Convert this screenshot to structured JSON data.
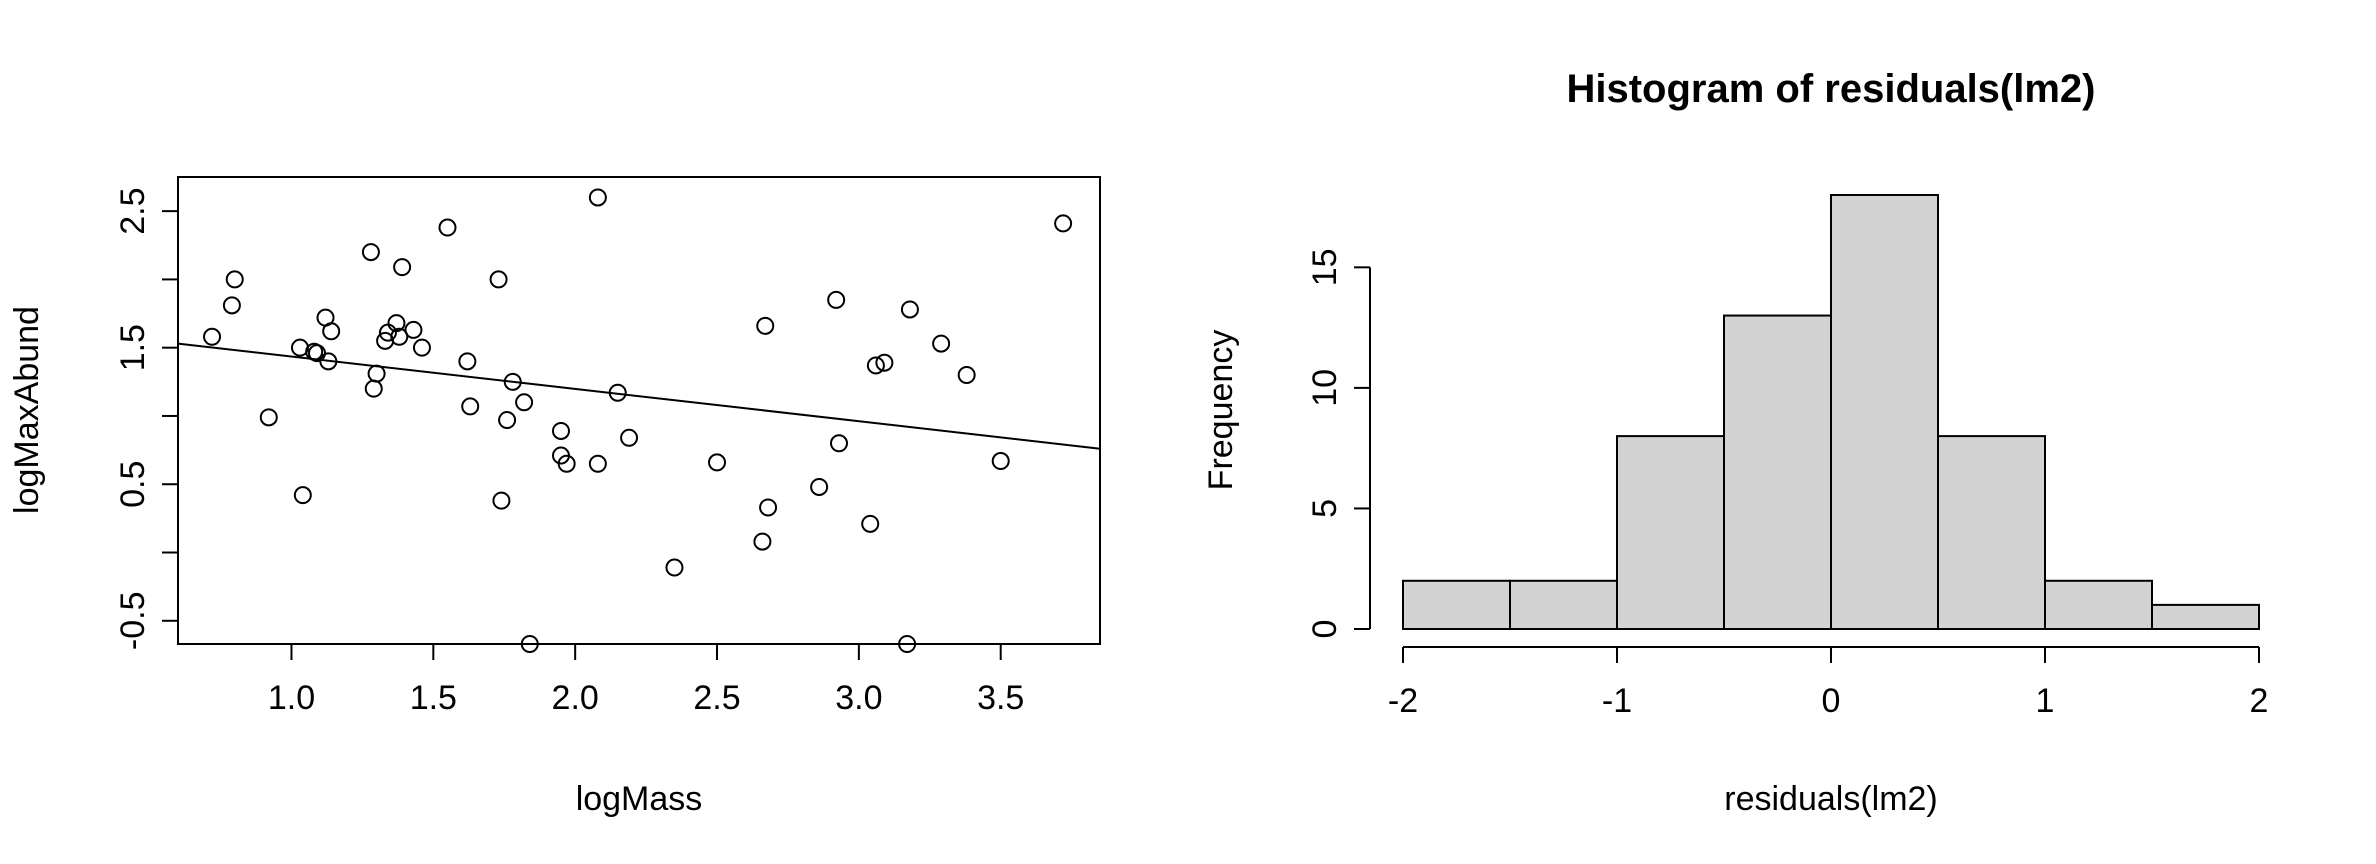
{
  "chart_data": [
    {
      "type": "scatter",
      "title": "",
      "xlabel": "logMass",
      "ylabel": "logMaxAbund",
      "xlim": [
        0.6,
        3.85
      ],
      "ylim": [
        -0.67,
        2.75
      ],
      "xticks": [
        1.0,
        1.5,
        2.0,
        2.5,
        3.0,
        3.5
      ],
      "xtick_labels": [
        "1.0",
        "1.5",
        "2.0",
        "2.5",
        "3.0",
        "3.5"
      ],
      "yticks": [
        -0.5,
        0.0,
        0.5,
        1.0,
        1.5,
        2.0,
        2.5
      ],
      "ytick_labels": [
        "-0.5",
        "",
        "0.5",
        "",
        "1.5",
        "",
        "2.5"
      ],
      "regression_line": {
        "x": [
          0.6,
          3.85
        ],
        "y": [
          1.53,
          0.76
        ]
      },
      "points": [
        {
          "x": 0.72,
          "y": 1.58
        },
        {
          "x": 0.79,
          "y": 1.81
        },
        {
          "x": 0.8,
          "y": 2.0
        },
        {
          "x": 0.92,
          "y": 0.99
        },
        {
          "x": 1.03,
          "y": 1.5
        },
        {
          "x": 1.04,
          "y": 0.42
        },
        {
          "x": 1.08,
          "y": 1.47
        },
        {
          "x": 1.09,
          "y": 1.46
        },
        {
          "x": 1.12,
          "y": 1.72
        },
        {
          "x": 1.13,
          "y": 1.4
        },
        {
          "x": 1.14,
          "y": 1.62
        },
        {
          "x": 1.28,
          "y": 2.2
        },
        {
          "x": 1.29,
          "y": 1.2
        },
        {
          "x": 1.3,
          "y": 1.31
        },
        {
          "x": 1.33,
          "y": 1.55
        },
        {
          "x": 1.34,
          "y": 1.61
        },
        {
          "x": 1.37,
          "y": 1.68
        },
        {
          "x": 1.38,
          "y": 1.58
        },
        {
          "x": 1.39,
          "y": 2.09
        },
        {
          "x": 1.43,
          "y": 1.63
        },
        {
          "x": 1.46,
          "y": 1.5
        },
        {
          "x": 1.55,
          "y": 2.38
        },
        {
          "x": 1.62,
          "y": 1.4
        },
        {
          "x": 1.63,
          "y": 1.07
        },
        {
          "x": 1.73,
          "y": 2.0
        },
        {
          "x": 1.74,
          "y": 0.38
        },
        {
          "x": 1.76,
          "y": 0.97
        },
        {
          "x": 1.78,
          "y": 1.25
        },
        {
          "x": 1.82,
          "y": 1.1
        },
        {
          "x": 1.84,
          "y": -0.67
        },
        {
          "x": 1.95,
          "y": 0.89
        },
        {
          "x": 1.95,
          "y": 0.71
        },
        {
          "x": 1.97,
          "y": 0.65
        },
        {
          "x": 2.08,
          "y": 2.6
        },
        {
          "x": 2.08,
          "y": 0.65
        },
        {
          "x": 2.15,
          "y": 1.17
        },
        {
          "x": 2.19,
          "y": 0.84
        },
        {
          "x": 2.35,
          "y": -0.11
        },
        {
          "x": 2.5,
          "y": 0.66
        },
        {
          "x": 2.66,
          "y": 0.08
        },
        {
          "x": 2.67,
          "y": 1.66
        },
        {
          "x": 2.68,
          "y": 0.33
        },
        {
          "x": 2.86,
          "y": 0.48
        },
        {
          "x": 2.92,
          "y": 1.85
        },
        {
          "x": 2.93,
          "y": 0.8
        },
        {
          "x": 3.04,
          "y": 0.21
        },
        {
          "x": 3.06,
          "y": 1.37
        },
        {
          "x": 3.09,
          "y": 1.39
        },
        {
          "x": 3.17,
          "y": -0.67
        },
        {
          "x": 3.18,
          "y": 1.78
        },
        {
          "x": 3.29,
          "y": 1.53
        },
        {
          "x": 3.38,
          "y": 1.3
        },
        {
          "x": 3.5,
          "y": 0.67
        },
        {
          "x": 3.72,
          "y": 2.41
        }
      ]
    },
    {
      "type": "bar",
      "title": "Histogram of residuals(lm2)",
      "xlabel": "residuals(lm2)",
      "ylabel": "Frequency",
      "bin_edges": [
        -2,
        -1.5,
        -1,
        -0.5,
        0,
        0.5,
        1,
        1.5,
        2
      ],
      "values": [
        2,
        2,
        8,
        13,
        18,
        8,
        2,
        1
      ],
      "bar_color": "#d3d3d3",
      "xlim": [
        -2,
        2
      ],
      "ylim": [
        0,
        18
      ],
      "xticks": [
        -2,
        -1,
        0,
        1,
        2
      ],
      "xtick_labels": [
        "-2",
        "-1",
        "0",
        "1",
        "2"
      ],
      "yticks": [
        0,
        5,
        10,
        15
      ],
      "ytick_labels": [
        "0",
        "5",
        "10",
        "15"
      ]
    }
  ]
}
